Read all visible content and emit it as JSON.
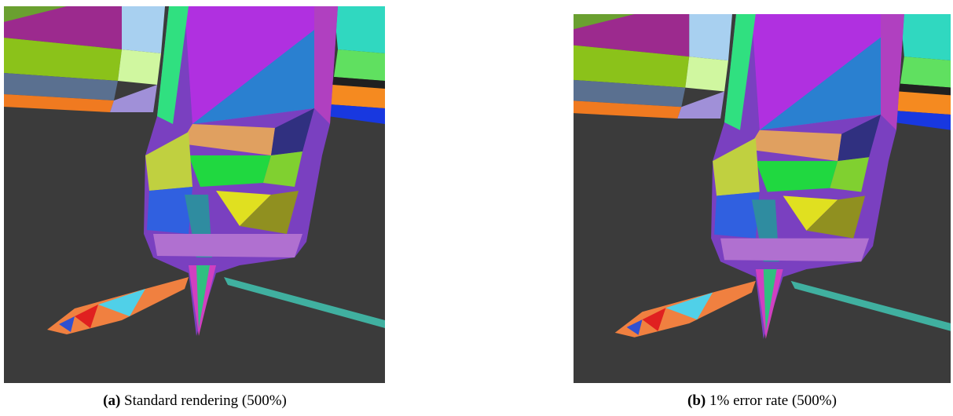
{
  "figure": {
    "subfigures": [
      {
        "label": "(a)",
        "caption": "Standard rendering (500%)"
      },
      {
        "label": "(b)",
        "caption": "1% error rate (500%)"
      }
    ]
  }
}
